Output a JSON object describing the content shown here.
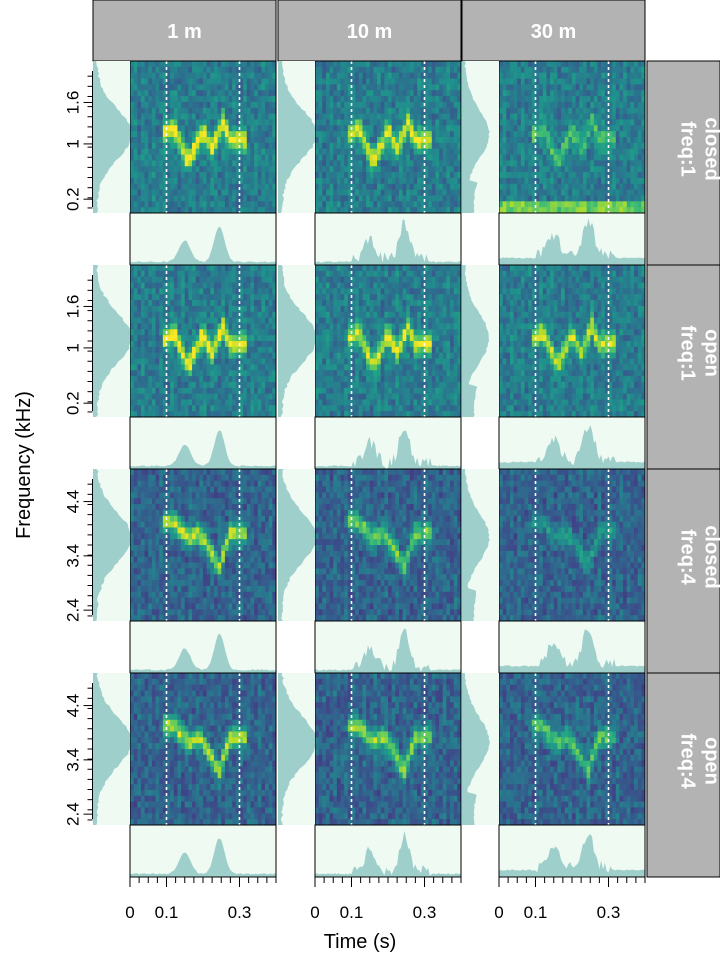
{
  "chart_data": {
    "type": "heatmap",
    "description_kind": "spectrogram grid with marginal amplitude envelopes and power spectra",
    "column_headers": [
      "1 m",
      "10 m",
      "30 m"
    ],
    "row_headers": [
      {
        "line1": "freq:1",
        "line2": "closed"
      },
      {
        "line1": "freq:1",
        "line2": "open"
      },
      {
        "line1": "freq:4",
        "line2": "closed"
      },
      {
        "line1": "freq:4",
        "line2": "open"
      }
    ],
    "xlabel": "Time (s)",
    "ylabel": "Frequency (kHz)",
    "x_ticks": [
      0,
      0.1,
      0.3
    ],
    "x_tick_labels": [
      "0",
      "0.1",
      "0.3"
    ],
    "xlim": [
      0,
      0.4
    ],
    "y_ticks_per_row": [
      {
        "ylim": [
          0,
          2.2
        ],
        "labels": [
          "0.2",
          "1",
          "1.6"
        ],
        "values": [
          0.2,
          1.0,
          1.6
        ]
      },
      {
        "ylim": [
          0,
          2.2
        ],
        "labels": [
          "0.2",
          "1",
          "1.6"
        ],
        "values": [
          0.2,
          1.0,
          1.6
        ]
      },
      {
        "ylim": [
          2.2,
          5.0
        ],
        "labels": [
          "2.4",
          "3.4",
          "4.4"
        ],
        "values": [
          2.4,
          3.4,
          4.4
        ]
      },
      {
        "ylim": [
          2.2,
          5.0
        ],
        "labels": [
          "2.4",
          "3.4",
          "4.4"
        ],
        "values": [
          2.4,
          3.4,
          4.4
        ]
      }
    ],
    "signal_window_s": [
      0.1,
      0.3
    ],
    "colormap": "viridis",
    "signal_strength": [
      [
        1.0,
        0.9,
        0.5
      ],
      [
        1.0,
        0.9,
        0.85
      ],
      [
        0.95,
        0.75,
        0.35
      ],
      [
        0.95,
        0.85,
        0.7
      ]
    ],
    "colors": {
      "strip_bg": "#b3b3b3",
      "strip_text": "#ffffff",
      "margin_fill": "#9fcfca",
      "margin_bg": "#effaf2",
      "dashed_line": "#ffffff"
    }
  }
}
